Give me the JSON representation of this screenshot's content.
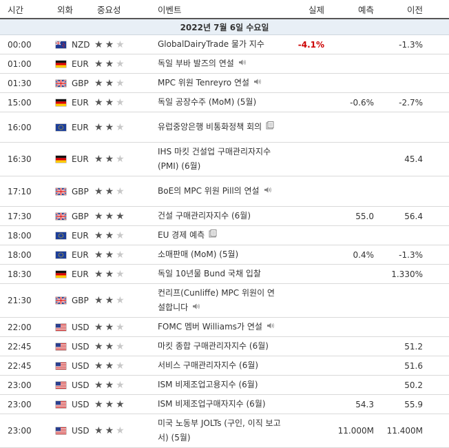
{
  "headers": {
    "time": "시간",
    "currency": "외화",
    "importance": "중요성",
    "event": "이벤트",
    "actual": "실제",
    "forecast": "예측",
    "previous": "이전"
  },
  "date_label": "2022년 7월 6일 수요일",
  "colors": {
    "actual_negative": "#cc0000",
    "date_row_bg": "#e8eff6"
  },
  "events": [
    {
      "time": "00:00",
      "flag": "nz-flag",
      "currency": "NZD",
      "stars": 2,
      "title": "GlobalDairyTrade 물가 지수",
      "icon": "",
      "actual": "-4.1%",
      "forecast": "",
      "previous": "-1.3%",
      "h": 25
    },
    {
      "time": "01:00",
      "flag": "de-flag",
      "currency": "EUR",
      "stars": 2,
      "title": "독일 부바 발즈의 연설",
      "icon": "speaker-icon",
      "actual": "",
      "forecast": "",
      "previous": "",
      "h": 25
    },
    {
      "time": "01:30",
      "flag": "gb-flag",
      "currency": "GBP",
      "stars": 2,
      "title": "MPC 위원 Tenreyro 연설",
      "icon": "speaker-icon",
      "actual": "",
      "forecast": "",
      "previous": "",
      "h": 26
    },
    {
      "time": "15:00",
      "flag": "de-flag",
      "currency": "EUR",
      "stars": 2,
      "title": "독일 공장수주 (MoM) (5월)",
      "icon": "",
      "actual": "",
      "forecast": "-0.6%",
      "previous": "-2.7%",
      "h": 25
    },
    {
      "time": "16:00",
      "flag": "eu-flag",
      "currency": "EUR",
      "stars": 2,
      "title": "유럽중앙은행 비통화정책 회의",
      "icon": "document-icon",
      "actual": "",
      "forecast": "",
      "previous": "",
      "h": 44
    },
    {
      "time": "16:30",
      "flag": "de-flag",
      "currency": "EUR",
      "stars": 2,
      "title": "IHS 마킷 건설업 구매관리자지수 (PMI) (6월)",
      "icon": "",
      "actual": "",
      "forecast": "",
      "previous": "45.4",
      "h": 44
    },
    {
      "time": "17:10",
      "flag": "gb-flag",
      "currency": "GBP",
      "stars": 2,
      "title": "BoE의 MPC 위원 Pill의 연설",
      "icon": "speaker-icon",
      "actual": "",
      "forecast": "",
      "previous": "",
      "h": 44
    },
    {
      "time": "17:30",
      "flag": "gb-flag",
      "currency": "GBP",
      "stars": 3,
      "title": "건설 구매관리자지수 (6월)",
      "icon": "",
      "actual": "",
      "forecast": "55.0",
      "previous": "56.4",
      "h": 26
    },
    {
      "time": "18:00",
      "flag": "eu-flag",
      "currency": "EUR",
      "stars": 2,
      "title": "EU 경제 예측",
      "icon": "document-icon",
      "actual": "",
      "forecast": "",
      "previous": "",
      "h": 26
    },
    {
      "time": "18:00",
      "flag": "eu-flag",
      "currency": "EUR",
      "stars": 2,
      "title": "소매판매 (MoM) (5월)",
      "icon": "",
      "actual": "",
      "forecast": "0.4%",
      "previous": "-1.3%",
      "h": 25
    },
    {
      "time": "18:30",
      "flag": "de-flag",
      "currency": "EUR",
      "stars": 2,
      "title": "독일 10년물 Bund 국채 입찰",
      "icon": "",
      "actual": "",
      "forecast": "",
      "previous": "1.330%",
      "h": 26
    },
    {
      "time": "21:30",
      "flag": "gb-flag",
      "currency": "GBP",
      "stars": 2,
      "title": "컨리프(Cunliffe) MPC 위원이 연설합니다",
      "icon": "speaker-icon",
      "actual": "",
      "forecast": "",
      "previous": "",
      "h": 44
    },
    {
      "time": "22:00",
      "flag": "us-flag",
      "currency": "USD",
      "stars": 2,
      "title": "FOMC 멤버 Williams가 연설",
      "icon": "speaker-icon",
      "actual": "",
      "forecast": "",
      "previous": "",
      "h": 25
    },
    {
      "time": "22:45",
      "flag": "us-flag",
      "currency": "USD",
      "stars": 2,
      "title": "마킷 종합 구매관리자지수 (6월)",
      "icon": "",
      "actual": "",
      "forecast": "",
      "previous": "51.2",
      "h": 25
    },
    {
      "time": "22:45",
      "flag": "us-flag",
      "currency": "USD",
      "stars": 2,
      "title": "서비스 구매관리자지수 (6월)",
      "icon": "",
      "actual": "",
      "forecast": "",
      "previous": "51.6",
      "h": 26
    },
    {
      "time": "23:00",
      "flag": "us-flag",
      "currency": "USD",
      "stars": 2,
      "title": "ISM 비제조업고용지수 (6월)",
      "icon": "",
      "actual": "",
      "forecast": "",
      "previous": "50.2",
      "h": 26
    },
    {
      "time": "23:00",
      "flag": "us-flag",
      "currency": "USD",
      "stars": 3,
      "title": "ISM 비제조업구매자지수 (6월)",
      "icon": "",
      "actual": "",
      "forecast": "54.3",
      "previous": "55.9",
      "h": 26
    },
    {
      "time": "23:00",
      "flag": "us-flag",
      "currency": "USD",
      "stars": 2,
      "title": "미국 노동부 JOLTs (구인, 이직 보고서) (5월)",
      "icon": "",
      "actual": "",
      "forecast": "11.000M",
      "previous": "11.400M",
      "h": 44
    }
  ]
}
